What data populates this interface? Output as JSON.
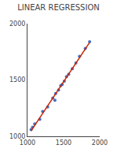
{
  "chart_data": {
    "type": "scatter",
    "title": "LINEAR REGRESSION",
    "series": [
      {
        "type": "scatter",
        "marker": "circle",
        "color": "#4472C4",
        "x": [
          1380,
          1070,
          1170,
          1280,
          1350,
          1430,
          1510,
          1480,
          1570,
          1620,
          1390,
          1460,
          1540,
          1670,
          1720,
          1800,
          1860,
          1210,
          1100,
          1050
        ],
        "values": [
          1320,
          1080,
          1150,
          1260,
          1340,
          1410,
          1490,
          1460,
          1550,
          1600,
          1380,
          1450,
          1530,
          1650,
          1710,
          1780,
          1840,
          1220,
          1110,
          1060
        ]
      },
      {
        "type": "line",
        "line_style": "solid",
        "color": "#CC2200",
        "x": [
          1050,
          1860
        ],
        "values": [
          1048.63,
          1832.97
        ]
      }
    ],
    "xlim": [
      1000,
      2000
    ],
    "xticks": [
      1000,
      1500,
      2000
    ],
    "ylim": [
      1000,
      2000
    ],
    "yticks": [
      1000,
      1500,
      2000
    ],
    "grid": false
  }
}
